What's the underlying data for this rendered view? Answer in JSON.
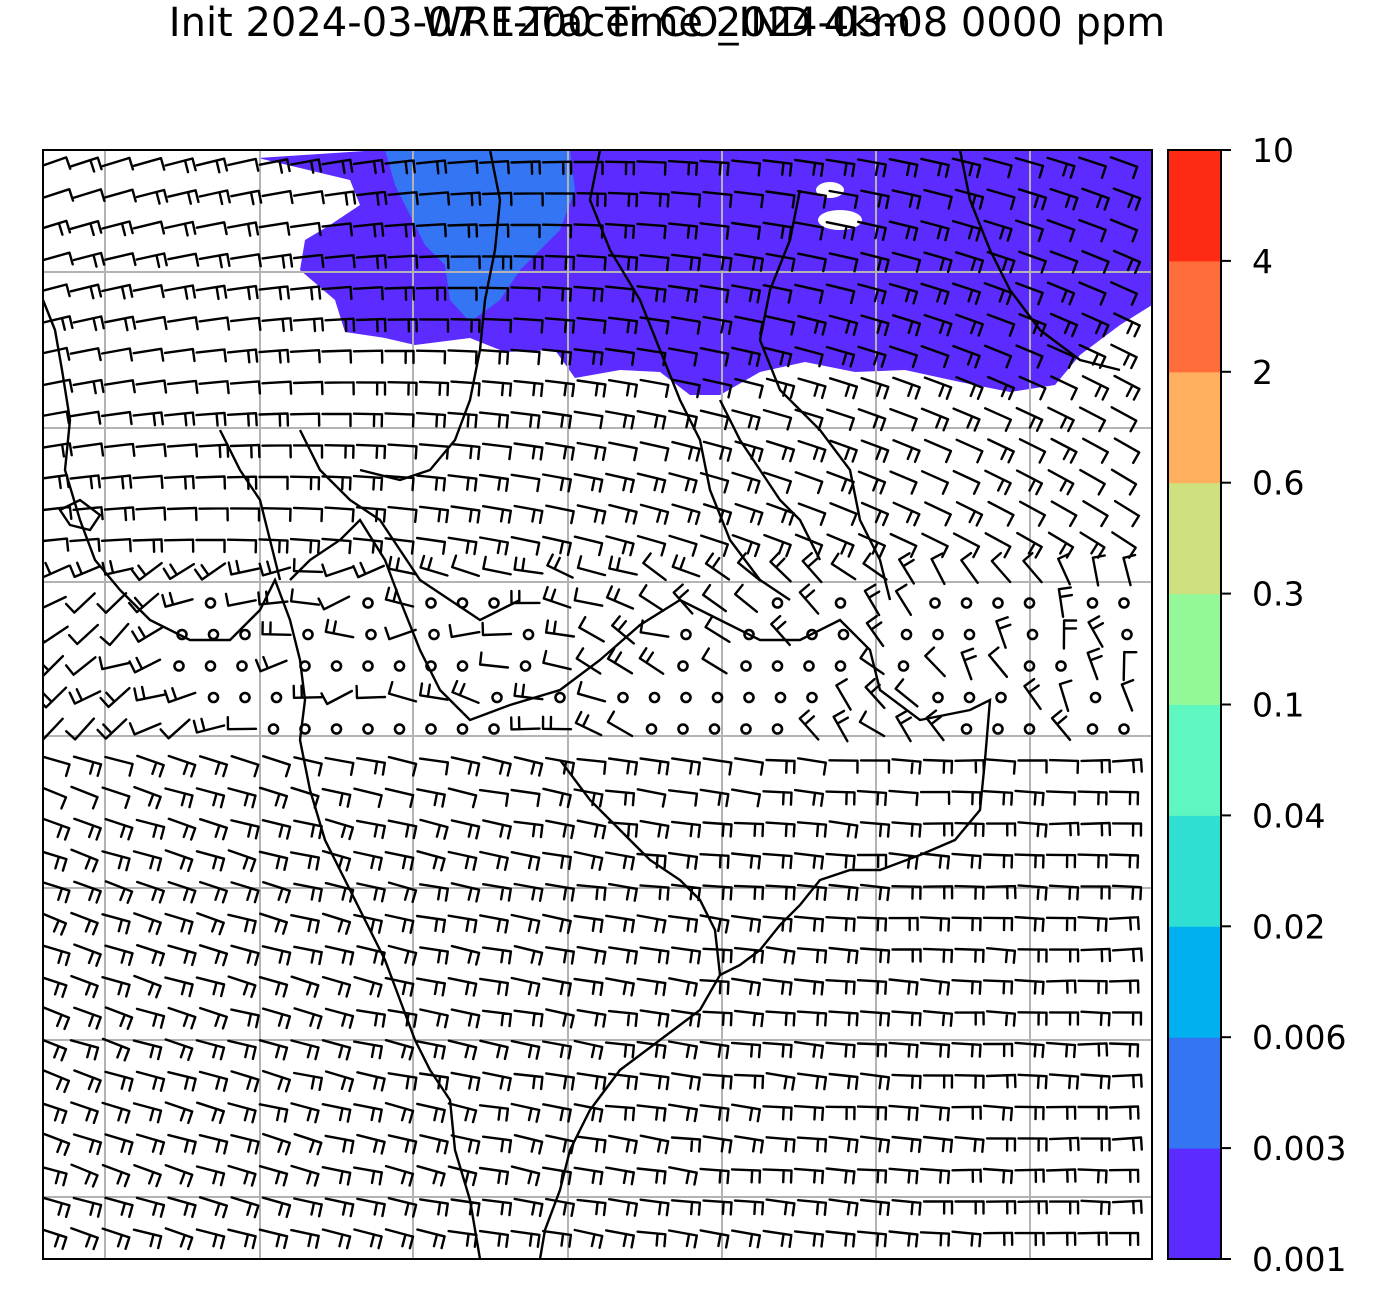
{
  "title": {
    "line1": "WRF-Tracer CO_IND 4km",
    "line2": "Init 2024-03-07 1200 Time 2024-03-08 0000 ppm"
  },
  "colorbar": {
    "levels": [
      "0.001",
      "0.003",
      "0.006",
      "0.02",
      "0.04",
      "0.1",
      "0.3",
      "0.6",
      "2",
      "4",
      "10"
    ],
    "colors": [
      "#5b2bff",
      "#3375f2",
      "#00b0ef",
      "#2fdfd2",
      "#5ff7c0",
      "#93f898",
      "#cfe07e",
      "#ffaf5e",
      "#ff6e3a",
      "#ff2a14"
    ]
  },
  "map": {
    "plume_colors": {
      "outer": "#5b2bff",
      "inner": "#3375f2"
    },
    "gridline_color": "#b3b3b3",
    "barb_color": "#000000",
    "symbols": [
      "wind-barbs",
      "calm-wind-circles",
      "coastlines",
      "state-borders",
      "lat-lon-gridlines"
    ]
  }
}
